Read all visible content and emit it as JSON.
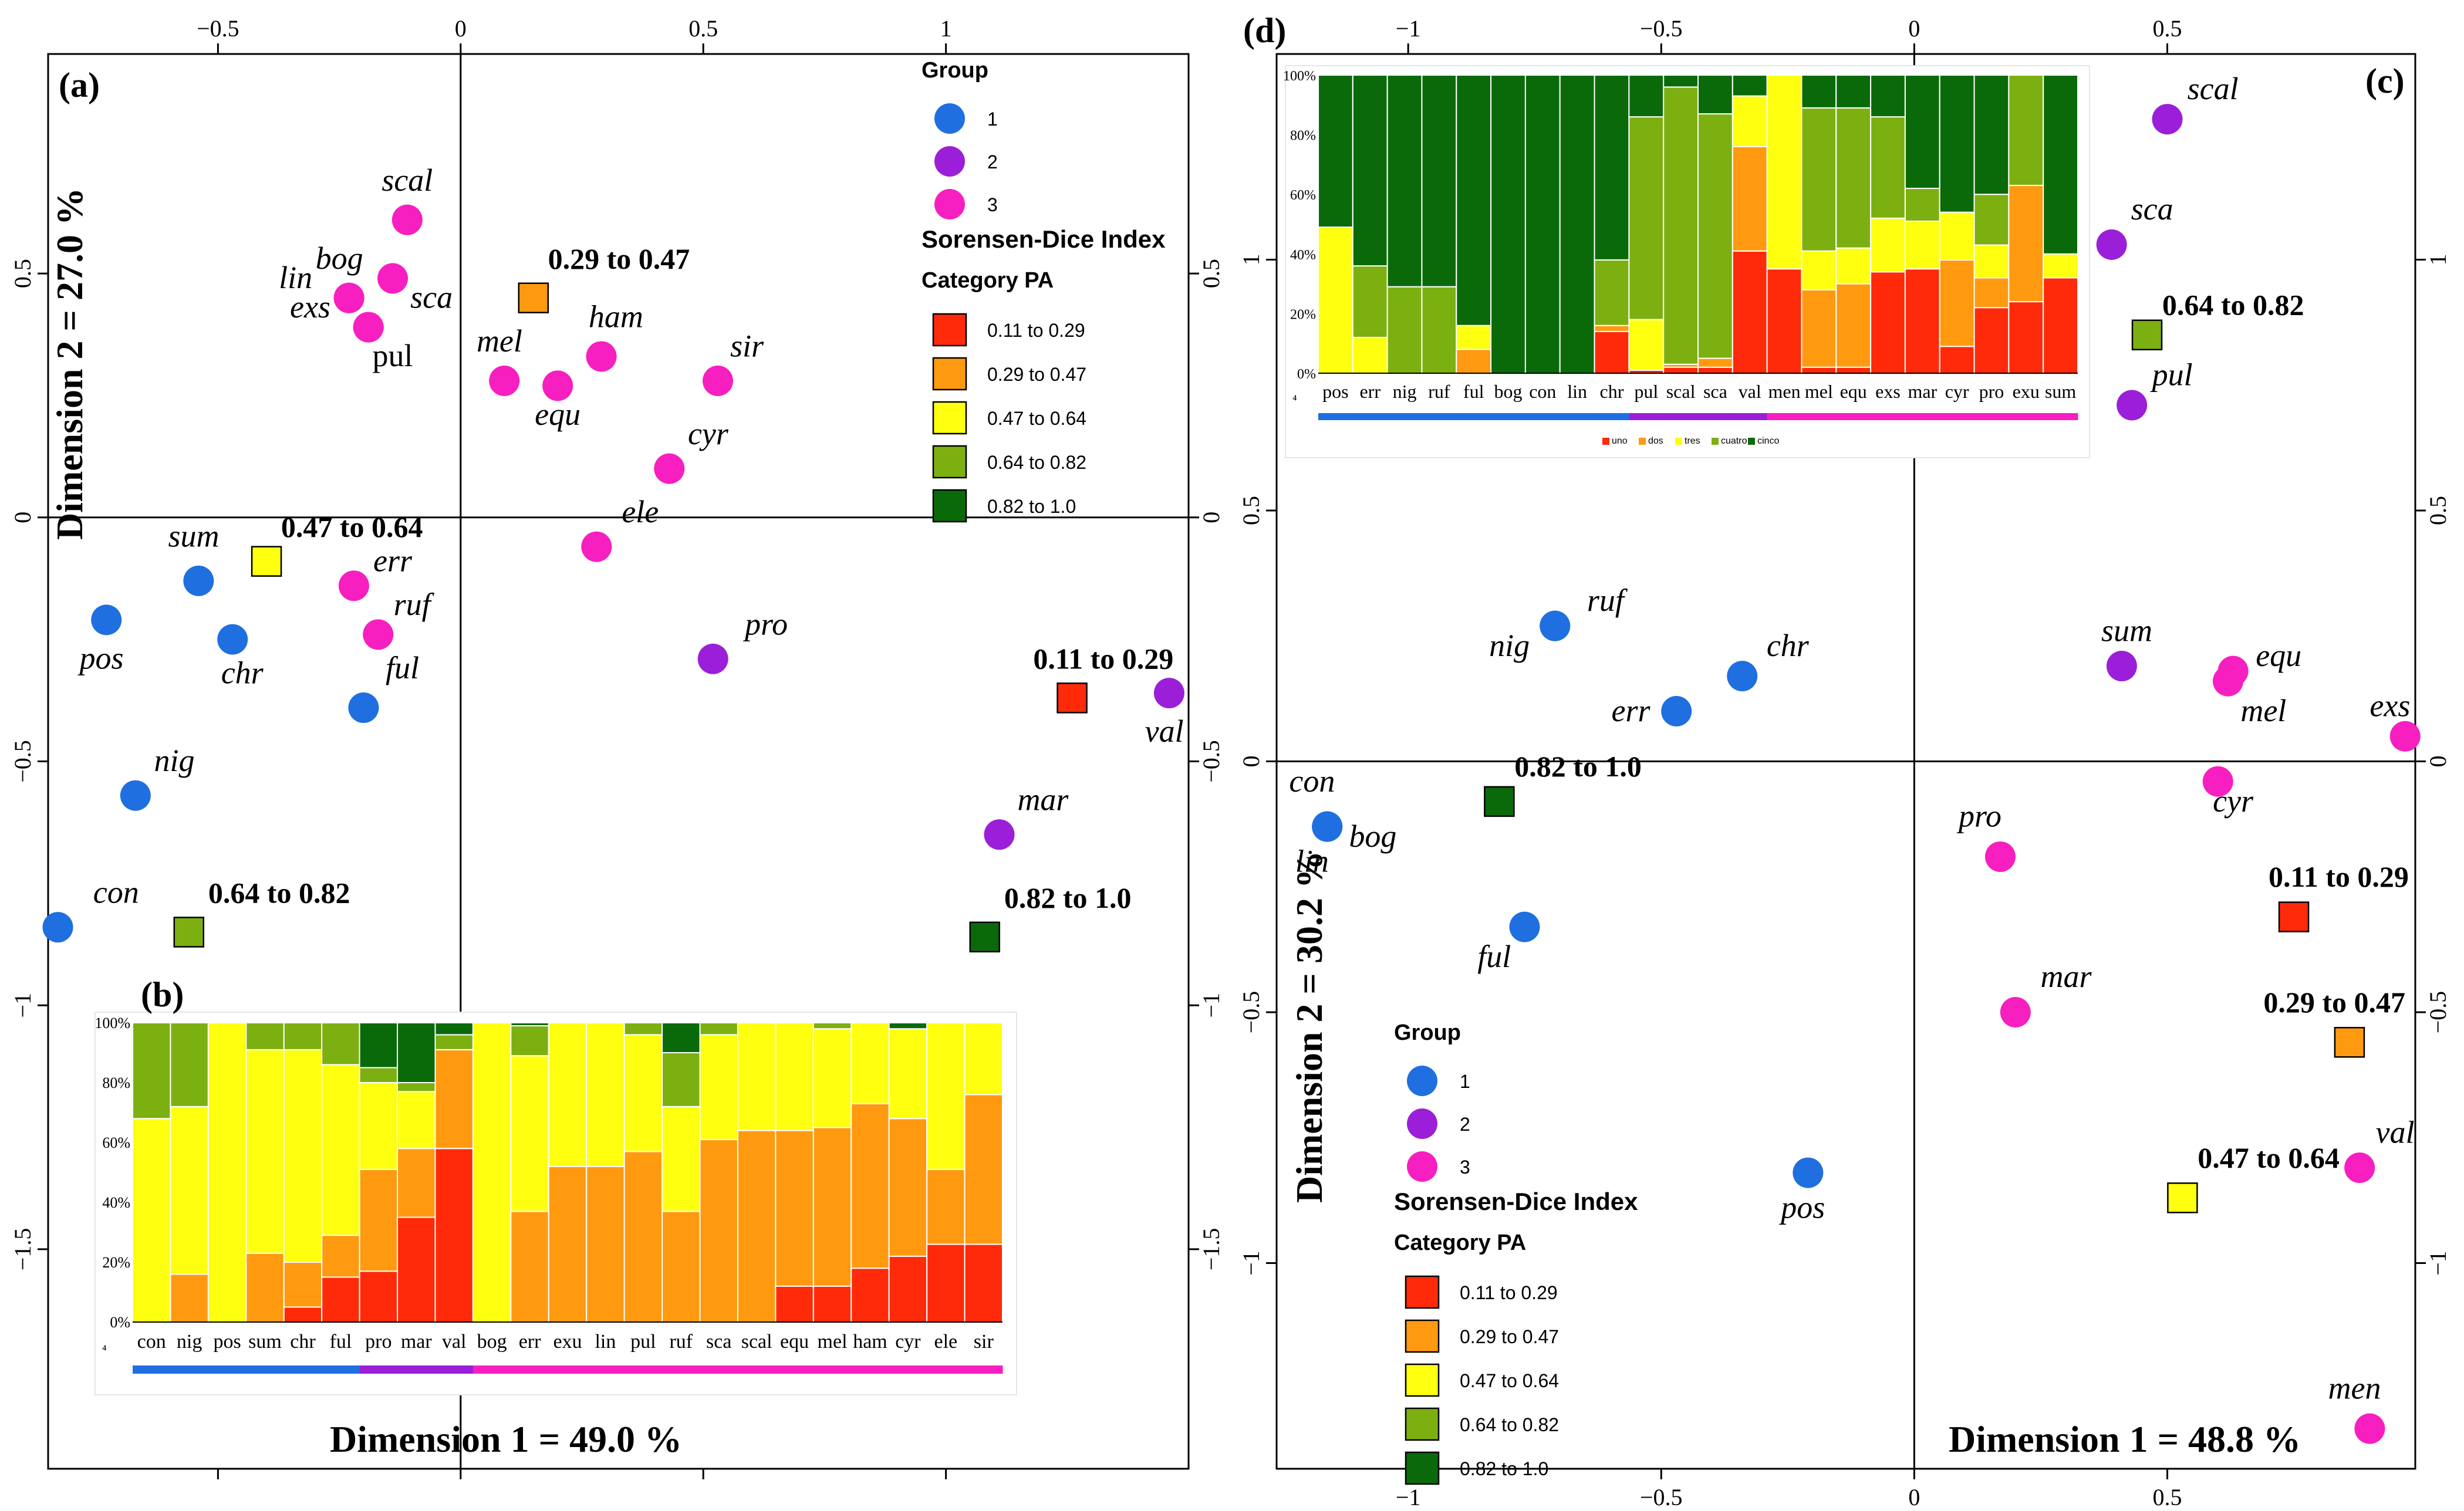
{
  "colors": {
    "group1": "#1f6fe0",
    "group2": "#9b1fd8",
    "group3": "#f71fc0",
    "cat1": "#ff2a0a",
    "cat2": "#ff9a10",
    "cat3": "#ffff10",
    "cat4": "#7cb010",
    "cat5": "#0a6a0a"
  },
  "legend": {
    "group_title": "Group",
    "groups": [
      "1",
      "2",
      "3"
    ],
    "index_title": "Sorensen-Dice Index",
    "category_title": "Category PA",
    "categories": [
      "0.11 to 0.29",
      "0.29 to 0.47",
      "0.47 to 0.64",
      "0.64 to 0.82",
      "0.82 to 1.0"
    ]
  },
  "chart_data": [
    {
      "id": "a",
      "type": "scatter",
      "panel_label": "(a)",
      "xlabel": "Dimension 1 = 49.0 %",
      "ylabel": "Dimension 2 = 27.0 %",
      "xlim": [
        -0.85,
        1.5
      ],
      "ylim": [
        -1.95,
        0.95
      ],
      "xticks": [
        -0.5,
        0,
        0.5,
        1
      ],
      "yticks": [
        -1.5,
        -1,
        -0.5,
        0,
        0.5
      ],
      "xtick_labels": [
        "−0.5",
        "0",
        "0.5",
        "1"
      ],
      "ytick_labels": [
        "−1.5",
        "−1",
        "−0.5",
        "0",
        "0.5"
      ],
      "points": [
        {
          "label": "scal",
          "group": 2,
          "x": -0.11,
          "y": 0.61,
          "lx": -0.11,
          "ly": 0.67,
          "italic": true
        },
        {
          "label": "sca",
          "group": 2,
          "x": -0.14,
          "y": 0.49,
          "lx": -0.06,
          "ly": 0.43,
          "italic": true
        },
        {
          "label": "bog",
          "group": 2,
          "x": -0.23,
          "y": 0.45,
          "lx": -0.25,
          "ly": 0.51,
          "italic": true
        },
        {
          "label": "lin",
          "group": 2,
          "x": -0.23,
          "y": 0.45,
          "lx": -0.34,
          "ly": 0.47,
          "italic": true
        },
        {
          "label": "exs",
          "group": 2,
          "x": -0.19,
          "y": 0.39,
          "lx": -0.31,
          "ly": 0.41,
          "italic": true
        },
        {
          "label": "pul",
          "group": 2,
          "x": -0.19,
          "y": 0.39,
          "lx": -0.14,
          "ly": 0.31,
          "italic": false
        },
        {
          "label": "mel",
          "group": 2,
          "x": 0.09,
          "y": 0.28,
          "lx": 0.08,
          "ly": 0.34,
          "italic": true
        },
        {
          "label": "equ",
          "group": 2,
          "x": 0.2,
          "y": 0.27,
          "lx": 0.2,
          "ly": 0.19,
          "italic": true
        },
        {
          "label": "ham",
          "group": 2,
          "x": 0.29,
          "y": 0.33,
          "lx": 0.32,
          "ly": 0.39,
          "italic": true
        },
        {
          "label": "sir",
          "group": 2,
          "x": 0.53,
          "y": 0.28,
          "lx": 0.59,
          "ly": 0.33,
          "italic": true
        },
        {
          "label": "cyr",
          "group": 2,
          "x": 0.43,
          "y": 0.1,
          "lx": 0.51,
          "ly": 0.15,
          "italic": true
        },
        {
          "label": "ele",
          "group": 2,
          "x": 0.28,
          "y": -0.06,
          "lx": 0.37,
          "ly": -0.01,
          "italic": true
        },
        {
          "label": "err",
          "group": 2,
          "x": -0.22,
          "y": -0.14,
          "lx": -0.14,
          "ly": -0.11,
          "italic": true
        },
        {
          "label": "ruf",
          "group": 2,
          "x": -0.17,
          "y": -0.24,
          "lx": -0.1,
          "ly": -0.2,
          "italic": true
        },
        {
          "label": "ful",
          "group": 0,
          "x": -0.2,
          "y": -0.39,
          "lx": -0.12,
          "ly": -0.33,
          "italic": true
        },
        {
          "label": "sum",
          "group": 0,
          "x": -0.54,
          "y": -0.13,
          "lx": -0.55,
          "ly": -0.06,
          "italic": true
        },
        {
          "label": "chr",
          "group": 0,
          "x": -0.47,
          "y": -0.25,
          "lx": -0.45,
          "ly": -0.34,
          "italic": true
        },
        {
          "label": "pos",
          "group": 0,
          "x": -0.73,
          "y": -0.21,
          "lx": -0.74,
          "ly": -0.31,
          "italic": true
        },
        {
          "label": "nig",
          "group": 0,
          "x": -0.67,
          "y": -0.57,
          "lx": -0.59,
          "ly": -0.52,
          "italic": true
        },
        {
          "label": "con",
          "group": 0,
          "x": -0.83,
          "y": -0.84,
          "lx": -0.71,
          "ly": -0.79,
          "italic": true
        },
        {
          "label": "pro",
          "group": 1,
          "x": 0.52,
          "y": -0.29,
          "lx": 0.63,
          "ly": -0.24,
          "italic": true
        },
        {
          "label": "val",
          "group": 1,
          "x": 1.46,
          "y": -0.36,
          "lx": 1.45,
          "ly": -0.46,
          "italic": true
        },
        {
          "label": "mar",
          "group": 1,
          "x": 1.11,
          "y": -0.65,
          "lx": 1.2,
          "ly": -0.6,
          "italic": true
        }
      ],
      "squares": [
        {
          "cat": 1,
          "x": 0.15,
          "y": 0.45,
          "label": "0.29 to 0.47",
          "lx": 0.18,
          "ly": 0.51
        },
        {
          "cat": 2,
          "x": -0.4,
          "y": -0.09,
          "label": "0.47 to 0.64",
          "lx": -0.37,
          "ly": -0.04
        },
        {
          "cat": 0,
          "x": 1.26,
          "y": -0.37,
          "label": "0.11 to 0.29",
          "lx": 1.18,
          "ly": -0.31
        },
        {
          "cat": 3,
          "x": -0.56,
          "y": -0.85,
          "label": "0.64 to 0.82",
          "lx": -0.52,
          "ly": -0.79
        },
        {
          "cat": 4,
          "x": 1.08,
          "y": -0.86,
          "label": "0.82 to 1.0",
          "lx": 1.12,
          "ly": -0.8
        }
      ]
    },
    {
      "id": "c",
      "type": "scatter",
      "panel_label": "(c)",
      "xlabel": "Dimension 1 = 48.8 %",
      "ylabel": "Dimension 2 = 30.2 %",
      "xlim": [
        -1.26,
        0.99
      ],
      "ylim": [
        -1.41,
        1.41
      ],
      "xticks": [
        -1,
        -0.5,
        0,
        0.5
      ],
      "yticks": [
        -1,
        -0.5,
        0,
        0.5,
        1
      ],
      "xtick_labels": [
        "−1",
        "−0.5",
        "0",
        "0.5"
      ],
      "ytick_labels": [
        "−1",
        "−0.5",
        "0",
        "0.5",
        "1"
      ],
      "points": [
        {
          "label": "scal",
          "group": 1,
          "x": 0.5,
          "y": 1.28,
          "lx": 0.59,
          "ly": 1.32,
          "italic": true
        },
        {
          "label": "sca",
          "group": 1,
          "x": 0.39,
          "y": 1.03,
          "lx": 0.47,
          "ly": 1.08,
          "italic": true
        },
        {
          "label": "pul",
          "group": 1,
          "x": 0.43,
          "y": 0.71,
          "lx": 0.51,
          "ly": 0.75,
          "italic": true
        },
        {
          "label": "sum",
          "group": 1,
          "x": 0.41,
          "y": 0.19,
          "lx": 0.42,
          "ly": 0.24,
          "italic": true
        },
        {
          "label": "equ",
          "group": 2,
          "x": 0.63,
          "y": 0.18,
          "lx": 0.72,
          "ly": 0.19,
          "italic": true
        },
        {
          "label": "mel",
          "group": 2,
          "x": 0.62,
          "y": 0.16,
          "lx": 0.69,
          "ly": 0.08,
          "italic": true
        },
        {
          "label": "exs",
          "group": 2,
          "x": 0.97,
          "y": 0.05,
          "lx": 0.94,
          "ly": 0.09,
          "italic": true
        },
        {
          "label": "cyr",
          "group": 2,
          "x": 0.6,
          "y": -0.04,
          "lx": 0.63,
          "ly": -0.1,
          "italic": true
        },
        {
          "label": "pro",
          "group": 2,
          "x": 0.17,
          "y": -0.19,
          "lx": 0.13,
          "ly": -0.13,
          "italic": true
        },
        {
          "label": "mar",
          "group": 2,
          "x": 0.2,
          "y": -0.5,
          "lx": 0.3,
          "ly": -0.45,
          "italic": true
        },
        {
          "label": "val",
          "group": 2,
          "x": 0.88,
          "y": -0.81,
          "lx": 0.95,
          "ly": -0.76,
          "italic": true
        },
        {
          "label": "men",
          "group": 2,
          "x": 0.9,
          "y": -1.33,
          "lx": 0.87,
          "ly": -1.27,
          "italic": true
        },
        {
          "label": "ruf",
          "group": 0,
          "x": -0.71,
          "y": 0.27,
          "lx": -0.61,
          "ly": 0.3,
          "italic": true
        },
        {
          "label": "nig",
          "group": 0,
          "x": -0.71,
          "y": 0.27,
          "lx": -0.8,
          "ly": 0.21,
          "italic": true
        },
        {
          "label": "chr",
          "group": 0,
          "x": -0.34,
          "y": 0.17,
          "lx": -0.25,
          "ly": 0.21,
          "italic": true
        },
        {
          "label": "err",
          "group": 0,
          "x": -0.47,
          "y": 0.1,
          "lx": -0.56,
          "ly": 0.08,
          "italic": true
        },
        {
          "label": "con",
          "group": 0,
          "x": -1.16,
          "y": -0.13,
          "lx": -1.19,
          "ly": -0.06,
          "italic": true
        },
        {
          "label": "bog",
          "group": 0,
          "x": -1.16,
          "y": -0.13,
          "lx": -1.07,
          "ly": -0.17,
          "italic": true
        },
        {
          "label": "lin",
          "group": 0,
          "x": -1.16,
          "y": -0.13,
          "lx": -1.19,
          "ly": -0.22,
          "italic": true
        },
        {
          "label": "ful",
          "group": 0,
          "x": -0.77,
          "y": -0.33,
          "lx": -0.83,
          "ly": -0.41,
          "italic": true
        },
        {
          "label": "pos",
          "group": 0,
          "x": -0.21,
          "y": -0.82,
          "lx": -0.22,
          "ly": -0.91,
          "italic": true
        }
      ],
      "squares": [
        {
          "cat": 3,
          "x": 0.46,
          "y": 0.85,
          "label": "0.64 to 0.82",
          "lx": 0.49,
          "ly": 0.89
        },
        {
          "cat": 4,
          "x": -0.82,
          "y": -0.08,
          "label": "0.82 to 1.0",
          "lx": -0.79,
          "ly": -0.03
        },
        {
          "cat": 0,
          "x": 0.75,
          "y": -0.31,
          "label": "0.11 to 0.29",
          "lx": 0.7,
          "ly": -0.25
        },
        {
          "cat": 1,
          "x": 0.86,
          "y": -0.56,
          "label": "0.29 to 0.47",
          "lx": 0.69,
          "ly": -0.5
        },
        {
          "cat": 2,
          "x": 0.53,
          "y": -0.87,
          "label": "0.47 to 0.64",
          "lx": 0.56,
          "ly": -0.81
        }
      ]
    },
    {
      "id": "b",
      "type": "bar",
      "stacked": true,
      "panel_label": "(b)",
      "categories": [
        "con",
        "nig",
        "pos",
        "sum",
        "chr",
        "ful",
        "pro",
        "mar",
        "val",
        "bog",
        "err",
        "exu",
        "lin",
        "pul",
        "ruf",
        "sca",
        "scal",
        "equ",
        "mel",
        "ham",
        "cyr",
        "ele",
        "sir"
      ],
      "group_bar": [
        0,
        0,
        0,
        0,
        0,
        0,
        1,
        1,
        1,
        2,
        2,
        2,
        2,
        2,
        2,
        2,
        2,
        2,
        2,
        2,
        2,
        2,
        2
      ],
      "yticks": [
        "0%",
        "20%",
        "40%",
        "60%",
        "80%",
        "100%"
      ],
      "corner_mark": "⁴",
      "series": [
        {
          "name": "uno",
          "values": [
            0,
            0,
            0,
            0,
            5,
            15,
            17,
            35,
            58,
            0,
            0,
            0,
            0,
            0,
            0,
            0,
            0,
            12,
            12,
            18,
            22,
            26,
            26
          ]
        },
        {
          "name": "dos",
          "values": [
            0,
            16,
            0,
            23,
            15,
            14,
            34,
            23,
            33,
            0,
            37,
            52,
            52,
            57,
            37,
            61,
            64,
            52,
            53,
            55,
            46,
            25,
            50
          ]
        },
        {
          "name": "tres",
          "values": [
            68,
            56,
            100,
            68,
            71,
            57,
            29,
            19,
            0,
            100,
            52,
            48,
            48,
            39,
            35,
            35,
            36,
            36,
            33,
            27,
            30,
            49,
            24
          ]
        },
        {
          "name": "cuatro",
          "values": [
            32,
            28,
            0,
            9,
            9,
            14,
            5,
            3,
            5,
            0,
            10,
            0,
            0,
            4,
            18,
            4,
            0,
            0,
            2,
            0,
            0,
            0,
            0
          ]
        },
        {
          "name": "cinco",
          "values": [
            0,
            0,
            0,
            0,
            0,
            0,
            15,
            20,
            4,
            0,
            1,
            0,
            0,
            0,
            10,
            0,
            0,
            0,
            0,
            0,
            2,
            0,
            0
          ]
        }
      ]
    },
    {
      "id": "d",
      "type": "bar",
      "stacked": true,
      "panel_label": "(d)",
      "categories": [
        "pos",
        "err",
        "nig",
        "ruf",
        "ful",
        "bog",
        "con",
        "lin",
        "chr",
        "pul",
        "scal",
        "sca",
        "val",
        "men",
        "mel",
        "equ",
        "exs",
        "mar",
        "cyr",
        "pro",
        "exu",
        "sum"
      ],
      "group_bar": [
        0,
        0,
        0,
        0,
        0,
        0,
        0,
        0,
        0,
        1,
        1,
        1,
        1,
        2,
        2,
        2,
        2,
        2,
        2,
        2,
        2,
        2
      ],
      "yticks": [
        "0%",
        "20%",
        "40%",
        "60%",
        "80%",
        "100%"
      ],
      "corner_mark": "⁴",
      "series": [
        {
          "name": "uno",
          "values": [
            0,
            0,
            0,
            0,
            0,
            0,
            0,
            0,
            14,
            1,
            2,
            2,
            41,
            35,
            2,
            2,
            34,
            35,
            9,
            22,
            24,
            32
          ]
        },
        {
          "name": "dos",
          "values": [
            0,
            0,
            0,
            0,
            8,
            0,
            0,
            0,
            2,
            0,
            1,
            3,
            35,
            0,
            26,
            28,
            0,
            0,
            29,
            10,
            39,
            0
          ]
        },
        {
          "name": "tres",
          "values": [
            49,
            12,
            0,
            0,
            8,
            0,
            0,
            0,
            0,
            17,
            0,
            0,
            17,
            65,
            13,
            12,
            18,
            16,
            16,
            11,
            0,
            8
          ]
        },
        {
          "name": "cuatro",
          "values": [
            0,
            24,
            29,
            29,
            0,
            0,
            0,
            0,
            22,
            68,
            93,
            82,
            0,
            0,
            48,
            47,
            34,
            11,
            0,
            17,
            37,
            0
          ]
        },
        {
          "name": "cinco",
          "values": [
            51,
            64,
            71,
            71,
            84,
            100,
            100,
            100,
            62,
            14,
            4,
            13,
            7,
            0,
            11,
            11,
            14,
            38,
            46,
            40,
            0,
            60
          ]
        }
      ]
    }
  ]
}
